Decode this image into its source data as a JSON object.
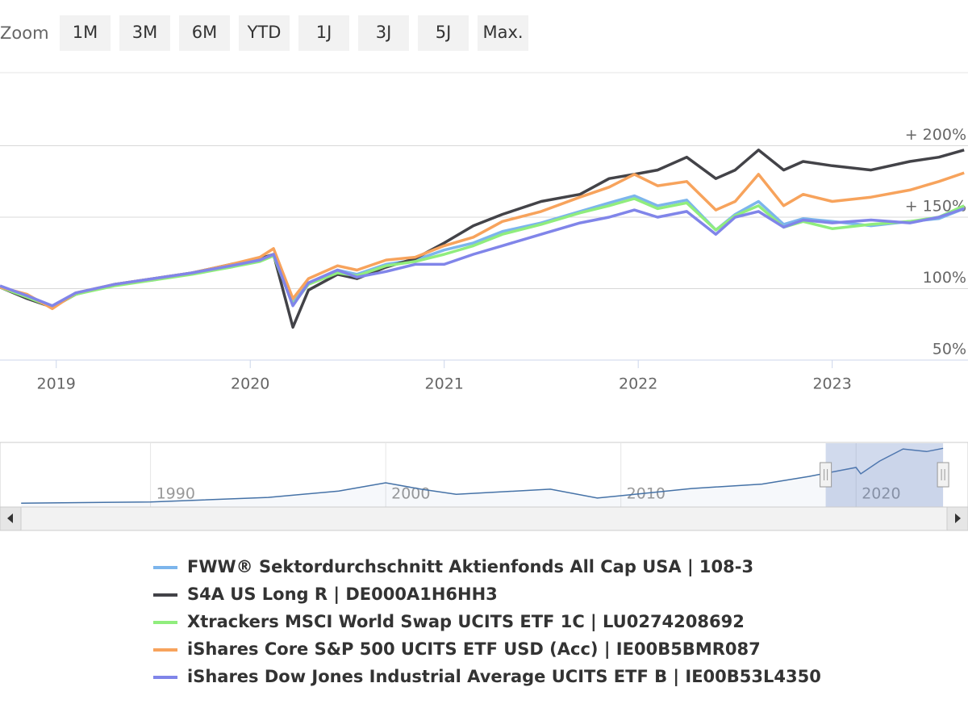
{
  "chart_data": {
    "type": "line",
    "zoom": {
      "label": "Zoom",
      "buttons": [
        "1M",
        "3M",
        "6M",
        "YTD",
        "1J",
        "3J",
        "5J",
        "Max."
      ]
    },
    "x": [
      2018.71,
      2018.85,
      2018.98,
      2019.1,
      2019.3,
      2019.5,
      2019.7,
      2019.9,
      2020.05,
      2020.12,
      2020.22,
      2020.3,
      2020.45,
      2020.55,
      2020.7,
      2020.85,
      2021.0,
      2021.15,
      2021.3,
      2021.5,
      2021.7,
      2021.85,
      2021.98,
      2022.1,
      2022.25,
      2022.4,
      2022.5,
      2022.62,
      2022.75,
      2022.85,
      2023.0,
      2023.2,
      2023.4,
      2023.55,
      2023.68
    ],
    "xlim": [
      2018.71,
      2023.7
    ],
    "xticks": [
      2019,
      2020,
      2021,
      2022,
      2023
    ],
    "ylim": [
      50,
      250
    ],
    "yticks": [
      {
        "value": 50,
        "label": "50%"
      },
      {
        "value": 100,
        "label": "100%"
      },
      {
        "value": 150,
        "label": "+ 150%"
      },
      {
        "value": 200,
        "label": "+ 200%"
      }
    ],
    "grid": true,
    "series": [
      {
        "name": "FWW® Sektordurchschnitt Aktienfonds All Cap USA | 108-3",
        "color": "#7cb5ec",
        "values": [
          101,
          94,
          87,
          96,
          103,
          106,
          111,
          115,
          120,
          123,
          90,
          104,
          113,
          110,
          117,
          120,
          127,
          132,
          140,
          146,
          154,
          160,
          165,
          158,
          162,
          141,
          152,
          161,
          145,
          149,
          147,
          144,
          147,
          149,
          156
        ]
      },
      {
        "name": "S4A US Long R | DE000A1H6HH3",
        "color": "#434348",
        "values": [
          101,
          93,
          87,
          96,
          103,
          107,
          111,
          117,
          121,
          124,
          73,
          99,
          110,
          107,
          115,
          121,
          132,
          144,
          152,
          161,
          166,
          177,
          180,
          183,
          192,
          177,
          183,
          197,
          183,
          189,
          186,
          183,
          189,
          192,
          197
        ]
      },
      {
        "name": "Xtrackers MSCI World Swap UCITS ETF 1C | LU0274208692",
        "color": "#90ed7d",
        "values": [
          101,
          94,
          87,
          96,
          102,
          106,
          110,
          115,
          119,
          123,
          89,
          103,
          111,
          109,
          116,
          119,
          124,
          130,
          138,
          145,
          153,
          158,
          163,
          156,
          160,
          141,
          151,
          158,
          143,
          147,
          142,
          145,
          147,
          150,
          158
        ]
      },
      {
        "name": "iShares Core S&P 500 UCITS ETF USD (Acc) | IE00B5BMR087",
        "color": "#f7a35c",
        "values": [
          101,
          96,
          86,
          97,
          103,
          107,
          111,
          117,
          122,
          128,
          93,
          107,
          116,
          113,
          120,
          122,
          130,
          136,
          147,
          154,
          164,
          171,
          180,
          172,
          175,
          155,
          161,
          180,
          158,
          166,
          161,
          164,
          169,
          175,
          181
        ]
      },
      {
        "name": "iShares Dow Jones Industrial Average UCITS ETF B | IE00B53L4350",
        "color": "#8085e9",
        "values": [
          102,
          95,
          88,
          97,
          103,
          107,
          111,
          116,
          120,
          124,
          88,
          104,
          113,
          108,
          112,
          117,
          117,
          124,
          130,
          138,
          146,
          150,
          155,
          150,
          154,
          138,
          150,
          154,
          143,
          148,
          146,
          148,
          146,
          150,
          156
        ]
      }
    ],
    "navigator": {
      "x": [
        1984.5,
        1990,
        1995,
        1998,
        2000,
        2001.5,
        2003,
        2007,
        2009,
        2013,
        2016,
        2018,
        2020,
        2020.2,
        2021,
        2022,
        2023,
        2023.7
      ],
      "values": [
        6,
        8,
        15,
        25,
        38,
        28,
        20,
        28,
        14,
        29,
        36,
        48,
        62,
        52,
        72,
        91,
        87,
        92
      ],
      "xlim": [
        1983.6,
        2024.76
      ],
      "ylim": [
        0,
        100
      ],
      "xticks": [
        1990,
        2000,
        2010,
        2020
      ],
      "color": "#4572a7",
      "selection": [
        2018.71,
        2023.7
      ]
    }
  }
}
